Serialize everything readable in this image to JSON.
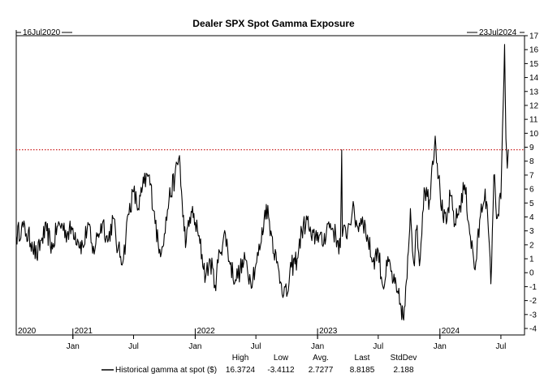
{
  "chart_data": {
    "type": "line",
    "title": "Dealer SPX Spot Gamma Exposure",
    "start_label": "16Jul2020",
    "end_label": "23Jul2024",
    "y_axis": {
      "min": -4,
      "max": 17,
      "ticks": [
        -4,
        -3,
        -2,
        -1,
        0,
        1,
        2,
        3,
        4,
        5,
        6,
        7,
        8,
        9,
        10,
        11,
        12,
        13,
        14,
        15,
        16,
        17
      ],
      "position": "right"
    },
    "x_axis": {
      "start": "2020-07-16",
      "end": "2024-07-23",
      "month_ticks": [
        {
          "label": "Jan",
          "date": "2021-01-01"
        },
        {
          "label": "Jul",
          "date": "2021-07-01"
        },
        {
          "label": "Jan",
          "date": "2022-01-01"
        },
        {
          "label": "Jul",
          "date": "2022-07-01"
        },
        {
          "label": "Jan",
          "date": "2023-01-01"
        },
        {
          "label": "Jul",
          "date": "2023-07-01"
        },
        {
          "label": "Jan",
          "date": "2024-01-01"
        },
        {
          "label": "Jul",
          "date": "2024-07-01"
        }
      ],
      "year_labels": [
        {
          "label": "2020",
          "date": "2020-07-16"
        },
        {
          "label": "2021",
          "date": "2021-01-01"
        },
        {
          "label": "2022",
          "date": "2022-01-01"
        },
        {
          "label": "2023",
          "date": "2023-01-01"
        },
        {
          "label": "2024",
          "date": "2024-01-01"
        }
      ]
    },
    "reference_line": {
      "y": 8.8185,
      "style": "dotted",
      "color": "#cc2222"
    },
    "grid": false,
    "series": [
      {
        "name": "Historical gamma at spot ($)",
        "color": "#000000",
        "points": [
          [
            "2020-07-16",
            2.6
          ],
          [
            "2020-08-01",
            3.3
          ],
          [
            "2020-08-15",
            2.8
          ],
          [
            "2020-09-01",
            2.2
          ],
          [
            "2020-09-15",
            1.1
          ],
          [
            "2020-10-01",
            2.5
          ],
          [
            "2020-10-15",
            3.0
          ],
          [
            "2020-11-01",
            1.7
          ],
          [
            "2020-11-15",
            3.3
          ],
          [
            "2020-12-01",
            3.4
          ],
          [
            "2020-12-15",
            2.8
          ],
          [
            "2021-01-01",
            3.2
          ],
          [
            "2021-01-15",
            2.4
          ],
          [
            "2021-02-01",
            1.8
          ],
          [
            "2021-02-15",
            3.6
          ],
          [
            "2021-03-01",
            1.4
          ],
          [
            "2021-03-15",
            2.6
          ],
          [
            "2021-04-01",
            3.7
          ],
          [
            "2021-04-15",
            2.2
          ],
          [
            "2021-05-01",
            3.9
          ],
          [
            "2021-05-15",
            1.6
          ],
          [
            "2021-06-01",
            1.0
          ],
          [
            "2021-06-15",
            4.2
          ],
          [
            "2021-07-01",
            5.8
          ],
          [
            "2021-07-15",
            4.6
          ],
          [
            "2021-08-01",
            6.4
          ],
          [
            "2021-08-15",
            7.0
          ],
          [
            "2021-09-01",
            4.4
          ],
          [
            "2021-09-15",
            1.4
          ],
          [
            "2021-10-01",
            2.8
          ],
          [
            "2021-10-15",
            5.3
          ],
          [
            "2021-11-01",
            6.8
          ],
          [
            "2021-11-15",
            8.4
          ],
          [
            "2021-11-25",
            4.0
          ],
          [
            "2021-12-05",
            2.2
          ],
          [
            "2021-12-20",
            4.4
          ],
          [
            "2022-01-01",
            3.6
          ],
          [
            "2022-01-15",
            2.1
          ],
          [
            "2022-02-01",
            -0.3
          ],
          [
            "2022-02-15",
            0.9
          ],
          [
            "2022-03-01",
            -0.9
          ],
          [
            "2022-03-15",
            1.5
          ],
          [
            "2022-04-01",
            2.8
          ],
          [
            "2022-04-15",
            0.6
          ],
          [
            "2022-05-01",
            -0.5
          ],
          [
            "2022-05-15",
            0.2
          ],
          [
            "2022-06-01",
            0.9
          ],
          [
            "2022-06-15",
            -0.6
          ],
          [
            "2022-07-01",
            0.6
          ],
          [
            "2022-07-15",
            2.0
          ],
          [
            "2022-08-01",
            4.9
          ],
          [
            "2022-08-15",
            3.0
          ],
          [
            "2022-09-01",
            0.7
          ],
          [
            "2022-09-15",
            -0.8
          ],
          [
            "2022-10-01",
            -1.7
          ],
          [
            "2022-10-15",
            0.4
          ],
          [
            "2022-11-01",
            1.0
          ],
          [
            "2022-11-15",
            3.0
          ],
          [
            "2022-12-01",
            3.8
          ],
          [
            "2022-12-15",
            2.3
          ],
          [
            "2023-01-01",
            2.9
          ],
          [
            "2023-01-15",
            2.0
          ],
          [
            "2023-02-01",
            3.5
          ],
          [
            "2023-02-15",
            3.2
          ],
          [
            "2023-03-01",
            2.3
          ],
          [
            "2023-03-10",
            1.8
          ],
          [
            "2023-03-14",
            8.8
          ],
          [
            "2023-03-16",
            2.6
          ],
          [
            "2023-04-01",
            3.1
          ],
          [
            "2023-04-15",
            4.5
          ],
          [
            "2023-05-01",
            3.3
          ],
          [
            "2023-05-15",
            4.0
          ],
          [
            "2023-06-01",
            2.3
          ],
          [
            "2023-06-15",
            0.8
          ],
          [
            "2023-07-01",
            1.6
          ],
          [
            "2023-07-15",
            -1.0
          ],
          [
            "2023-08-01",
            0.8
          ],
          [
            "2023-08-15",
            -0.6
          ],
          [
            "2023-08-25",
            -1.4
          ],
          [
            "2023-09-05",
            -2.2
          ],
          [
            "2023-09-15",
            -3.4
          ],
          [
            "2023-09-25",
            -0.4
          ],
          [
            "2023-10-05",
            4.6
          ],
          [
            "2023-10-15",
            0.7
          ],
          [
            "2023-10-25",
            3.4
          ],
          [
            "2023-11-01",
            0.5
          ],
          [
            "2023-11-15",
            6.1
          ],
          [
            "2023-12-01",
            5.2
          ],
          [
            "2023-12-10",
            8.0
          ],
          [
            "2023-12-18",
            9.8
          ],
          [
            "2023-12-28",
            6.8
          ],
          [
            "2024-01-10",
            4.0
          ],
          [
            "2024-01-20",
            3.5
          ],
          [
            "2024-02-01",
            5.5
          ],
          [
            "2024-02-15",
            3.5
          ],
          [
            "2024-03-01",
            4.8
          ],
          [
            "2024-03-15",
            6.3
          ],
          [
            "2024-04-01",
            2.6
          ],
          [
            "2024-04-15",
            0.2
          ],
          [
            "2024-05-01",
            4.1
          ],
          [
            "2024-05-15",
            6.0
          ],
          [
            "2024-05-25",
            2.9
          ],
          [
            "2024-06-01",
            -0.8
          ],
          [
            "2024-06-10",
            7.0
          ],
          [
            "2024-06-20",
            3.9
          ],
          [
            "2024-07-01",
            5.3
          ],
          [
            "2024-07-08",
            12.2
          ],
          [
            "2024-07-12",
            16.37
          ],
          [
            "2024-07-16",
            9.6
          ],
          [
            "2024-07-20",
            7.5
          ],
          [
            "2024-07-23",
            8.82
          ]
        ]
      }
    ]
  },
  "legend": {
    "series_label": "Historical gamma at spot ($)",
    "stats_headers": [
      "High",
      "Low",
      "Avg.",
      "Last",
      "StdDev"
    ],
    "stats_values": [
      "16.3724",
      "-3.4112",
      "2.7277",
      "8.8185",
      "2.188"
    ]
  }
}
